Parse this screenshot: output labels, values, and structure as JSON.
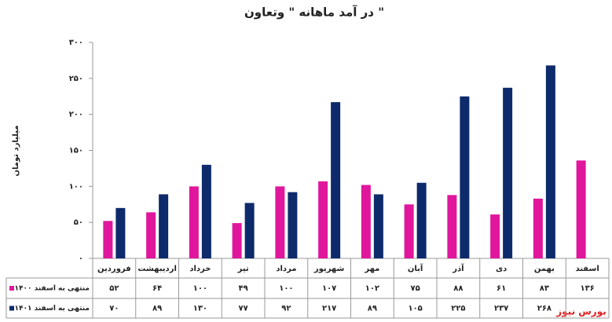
{
  "chart_data": {
    "type": "bar",
    "title": "در آمد ماهانه \" وتعاون \"",
    "y_label": "میلیارد تومان",
    "watermark": "بورس نیوز",
    "categories": [
      "فروردین",
      "اردیبهشت",
      "خرداد",
      "تیر",
      "مرداد",
      "شهریور",
      "مهر",
      "آبان",
      "آذر",
      "دی",
      "بهمن",
      "اسفند"
    ],
    "series": [
      {
        "name": "منتهی به اسفند ۱۴۰۰",
        "color": "#e0169c",
        "values": [
          52,
          64,
          100,
          49,
          100,
          107,
          102,
          75,
          88,
          61,
          83,
          136
        ],
        "value_labels": [
          "۵۲",
          "۶۴",
          "۱۰۰",
          "۴۹",
          "۱۰۰",
          "۱۰۷",
          "۱۰۲",
          "۷۵",
          "۸۸",
          "۶۱",
          "۸۳",
          "۱۳۶"
        ]
      },
      {
        "name": "منتهی به اسفند ۱۴۰۱",
        "color": "#0d2a6b",
        "values": [
          70,
          89,
          130,
          77,
          92,
          217,
          89,
          105,
          225,
          237,
          268,
          null
        ],
        "value_labels": [
          "۷۰",
          "۸۹",
          "۱۳۰",
          "۷۷",
          "۹۲",
          "۲۱۷",
          "۸۹",
          "۱۰۵",
          "۲۲۵",
          "۲۳۷",
          "۲۶۸",
          null
        ]
      }
    ],
    "ylim": [
      0,
      300
    ],
    "yticks": [
      {
        "value": 0,
        "label": "۰"
      },
      {
        "value": 50,
        "label": "۵۰"
      },
      {
        "value": 100,
        "label": "۱۰۰"
      },
      {
        "value": 150,
        "label": "۱۵۰"
      },
      {
        "value": 200,
        "label": "۲۰۰"
      },
      {
        "value": 250,
        "label": "۲۵۰"
      },
      {
        "value": 300,
        "label": "۳۰۰"
      }
    ]
  }
}
